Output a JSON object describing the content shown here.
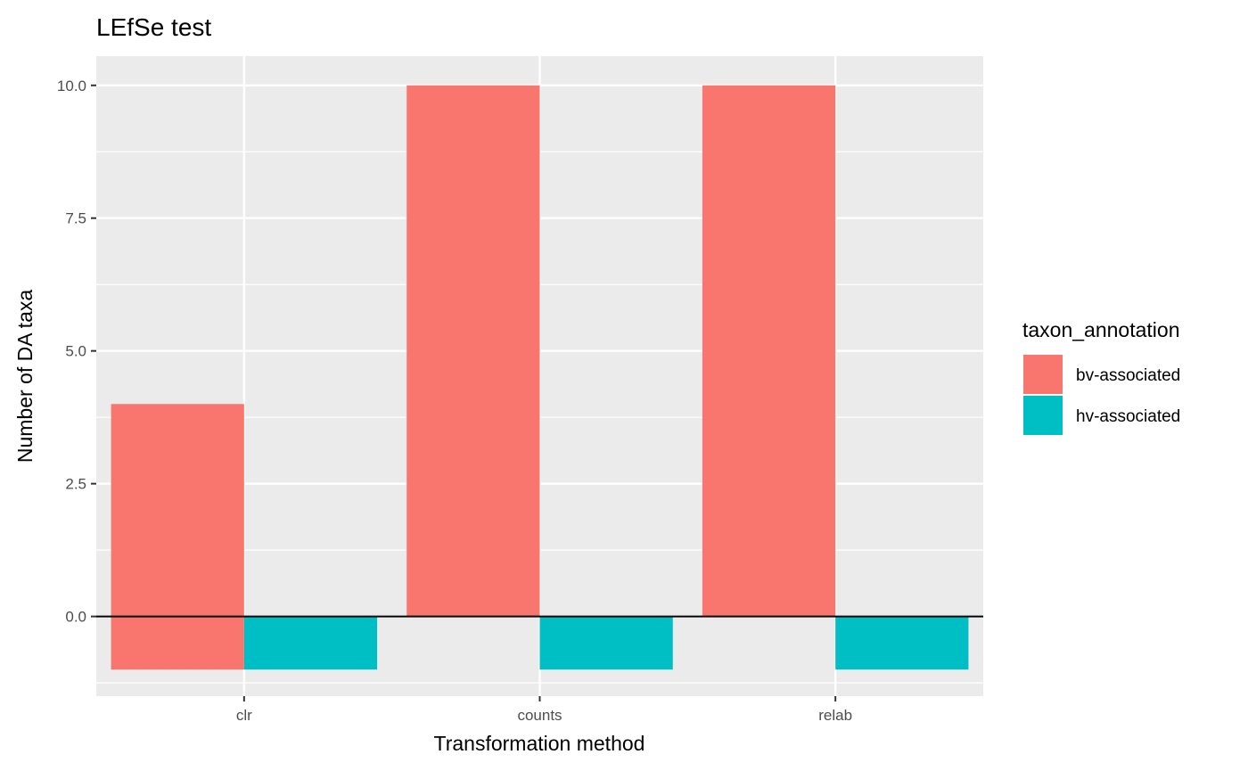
{
  "chart_data": {
    "type": "bar",
    "title": "LEfSe test",
    "xlabel": "Transformation method",
    "ylabel": "Number of DA taxa",
    "categories": [
      "clr",
      "counts",
      "relab"
    ],
    "series": [
      {
        "name": "bv-associated",
        "values": [
          4,
          10,
          10
        ],
        "negative_values": [
          -1,
          0,
          0
        ],
        "color": "#F8766D"
      },
      {
        "name": "hv-associated",
        "values": [
          0,
          0,
          0
        ],
        "negative_values": [
          -1,
          -1,
          -1
        ],
        "color": "#00BFC4"
      }
    ],
    "ylim": [
      -1.5,
      10.55
    ],
    "yticks": [
      0,
      2.5,
      5,
      7.5,
      10
    ],
    "ytick_labels": [
      "0.0",
      "2.5",
      "5.0",
      "7.5",
      "10.0"
    ],
    "legend_title": "taxon_annotation",
    "legend_position": "right",
    "grid": true,
    "zero_line": true,
    "panel_background": "#EBEBEB"
  }
}
